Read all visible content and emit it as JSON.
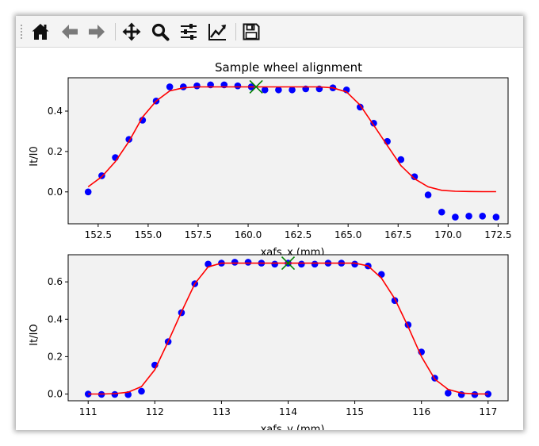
{
  "toolbar": {
    "buttons": [
      {
        "name": "home-button",
        "icon": "home-icon",
        "tooltip": "Reset original view"
      },
      {
        "name": "back-button",
        "icon": "arrow-left-icon",
        "tooltip": "Back to previous view"
      },
      {
        "name": "forward-button",
        "icon": "arrow-right-icon",
        "tooltip": "Forward to next view"
      },
      {
        "name": "pan-button",
        "icon": "move-arrows-icon",
        "tooltip": "Pan axes"
      },
      {
        "name": "zoom-button",
        "icon": "magnifier-icon",
        "tooltip": "Zoom to rectangle"
      },
      {
        "name": "configure-subplots-button",
        "icon": "sliders-icon",
        "tooltip": "Configure subplots"
      },
      {
        "name": "edit-axes-button",
        "icon": "line-chart-icon",
        "tooltip": "Edit axis, curve and image parameters"
      },
      {
        "name": "save-button",
        "icon": "floppy-disk-icon",
        "tooltip": "Save the figure"
      }
    ]
  },
  "colors": {
    "scatter": "#0000ff",
    "fit": "#ff0000",
    "marker": "#008000",
    "axes_bg": "#f2f2f2"
  },
  "chart_data": [
    {
      "type": "scatter",
      "title": "Sample wheel alignment",
      "xlabel": "xafs_x (mm)",
      "ylabel": "It/I0",
      "xlim": [
        151.0,
        173.0
      ],
      "ylim": [
        -0.158,
        0.565
      ],
      "xticks": [
        152.5,
        155.0,
        157.5,
        160.0,
        162.5,
        165.0,
        167.5,
        170.0,
        172.5
      ],
      "xtick_labels": [
        "152.5",
        "155.0",
        "157.5",
        "160.0",
        "162.5",
        "165.0",
        "167.5",
        "170.0",
        "172.5"
      ],
      "yticks": [
        0.0,
        0.2,
        0.4
      ],
      "ytick_labels": [
        "0.0",
        "0.2",
        "0.4"
      ],
      "series": [
        {
          "name": "data",
          "kind": "points",
          "color": "#0000ff",
          "x": [
            152.0,
            152.68,
            153.36,
            154.04,
            154.72,
            155.4,
            156.08,
            156.76,
            157.44,
            158.12,
            158.8,
            159.48,
            160.16,
            160.84,
            161.52,
            162.2,
            162.88,
            163.56,
            164.24,
            164.92,
            165.6,
            166.28,
            166.96,
            167.64,
            168.32,
            169.0,
            169.68,
            170.36,
            171.04,
            171.72,
            172.4
          ],
          "y": [
            0.0,
            0.08,
            0.17,
            0.26,
            0.355,
            0.45,
            0.52,
            0.52,
            0.525,
            0.53,
            0.53,
            0.525,
            0.52,
            0.505,
            0.505,
            0.505,
            0.51,
            0.51,
            0.515,
            0.505,
            0.42,
            0.34,
            0.25,
            0.16,
            0.075,
            -0.015,
            -0.1,
            -0.125,
            -0.12,
            -0.12,
            -0.125
          ]
        },
        {
          "name": "fit",
          "kind": "line",
          "color": "#ff0000",
          "x": [
            152.0,
            152.68,
            153.36,
            154.04,
            154.72,
            155.4,
            156.08,
            156.76,
            157.44,
            158.12,
            158.8,
            159.48,
            160.16,
            160.84,
            161.52,
            162.2,
            162.88,
            163.56,
            164.24,
            164.92,
            165.6,
            166.28,
            166.96,
            167.64,
            168.32,
            169.0,
            169.68,
            170.36,
            171.04,
            171.72,
            172.4
          ],
          "y": [
            0.025,
            0.075,
            0.15,
            0.25,
            0.37,
            0.45,
            0.5,
            0.515,
            0.52,
            0.52,
            0.52,
            0.52,
            0.52,
            0.52,
            0.52,
            0.52,
            0.52,
            0.52,
            0.515,
            0.495,
            0.43,
            0.33,
            0.23,
            0.13,
            0.065,
            0.025,
            0.008,
            0.003,
            0.002,
            0.001,
            0.001
          ]
        },
        {
          "name": "center",
          "kind": "marker",
          "color": "#008000",
          "marker": "x",
          "x": [
            160.4
          ],
          "y": [
            0.52
          ]
        }
      ]
    },
    {
      "type": "scatter",
      "title": "",
      "xlabel": "xafs_y (mm)",
      "ylabel": "It/IO",
      "xlim": [
        110.7,
        117.3
      ],
      "ylim": [
        -0.036,
        0.745
      ],
      "xticks": [
        111,
        112,
        113,
        114,
        115,
        116,
        117
      ],
      "xtick_labels": [
        "111",
        "112",
        "113",
        "114",
        "115",
        "116",
        "117"
      ],
      "yticks": [
        0.0,
        0.2,
        0.4,
        0.6
      ],
      "ytick_labels": [
        "0.0",
        "0.2",
        "0.4",
        "0.6"
      ],
      "series": [
        {
          "name": "data",
          "kind": "points",
          "color": "#0000ff",
          "x": [
            111.0,
            111.2,
            111.4,
            111.6,
            111.8,
            112.0,
            112.2,
            112.4,
            112.6,
            112.8,
            113.0,
            113.2,
            113.4,
            113.6,
            113.8,
            114.0,
            114.2,
            114.4,
            114.6,
            114.8,
            115.0,
            115.2,
            115.4,
            115.6,
            115.8,
            116.0,
            116.2,
            116.4,
            116.6,
            116.8,
            117.0
          ],
          "y": [
            0.0,
            -0.002,
            -0.002,
            -0.003,
            0.015,
            0.155,
            0.28,
            0.435,
            0.59,
            0.695,
            0.7,
            0.705,
            0.705,
            0.7,
            0.695,
            0.7,
            0.695,
            0.695,
            0.7,
            0.7,
            0.695,
            0.685,
            0.64,
            0.5,
            0.37,
            0.225,
            0.085,
            0.005,
            -0.003,
            -0.003,
            0.0
          ]
        },
        {
          "name": "fit",
          "kind": "line",
          "color": "#ff0000",
          "x": [
            111.0,
            111.2,
            111.4,
            111.6,
            111.8,
            112.0,
            112.2,
            112.4,
            112.6,
            112.8,
            113.0,
            113.2,
            113.4,
            113.6,
            113.8,
            114.0,
            114.2,
            114.4,
            114.6,
            114.8,
            115.0,
            115.2,
            115.4,
            115.6,
            115.8,
            116.0,
            116.2,
            116.4,
            116.6,
            116.8,
            117.0
          ],
          "y": [
            0.0,
            0.0,
            0.002,
            0.01,
            0.04,
            0.13,
            0.28,
            0.44,
            0.59,
            0.68,
            0.7,
            0.7,
            0.7,
            0.7,
            0.7,
            0.7,
            0.7,
            0.7,
            0.7,
            0.7,
            0.7,
            0.685,
            0.62,
            0.51,
            0.36,
            0.2,
            0.08,
            0.025,
            0.005,
            0.001,
            0.0
          ]
        },
        {
          "name": "center",
          "kind": "marker",
          "color": "#008000",
          "marker": "x",
          "x": [
            114.0
          ],
          "y": [
            0.7
          ]
        }
      ]
    }
  ]
}
